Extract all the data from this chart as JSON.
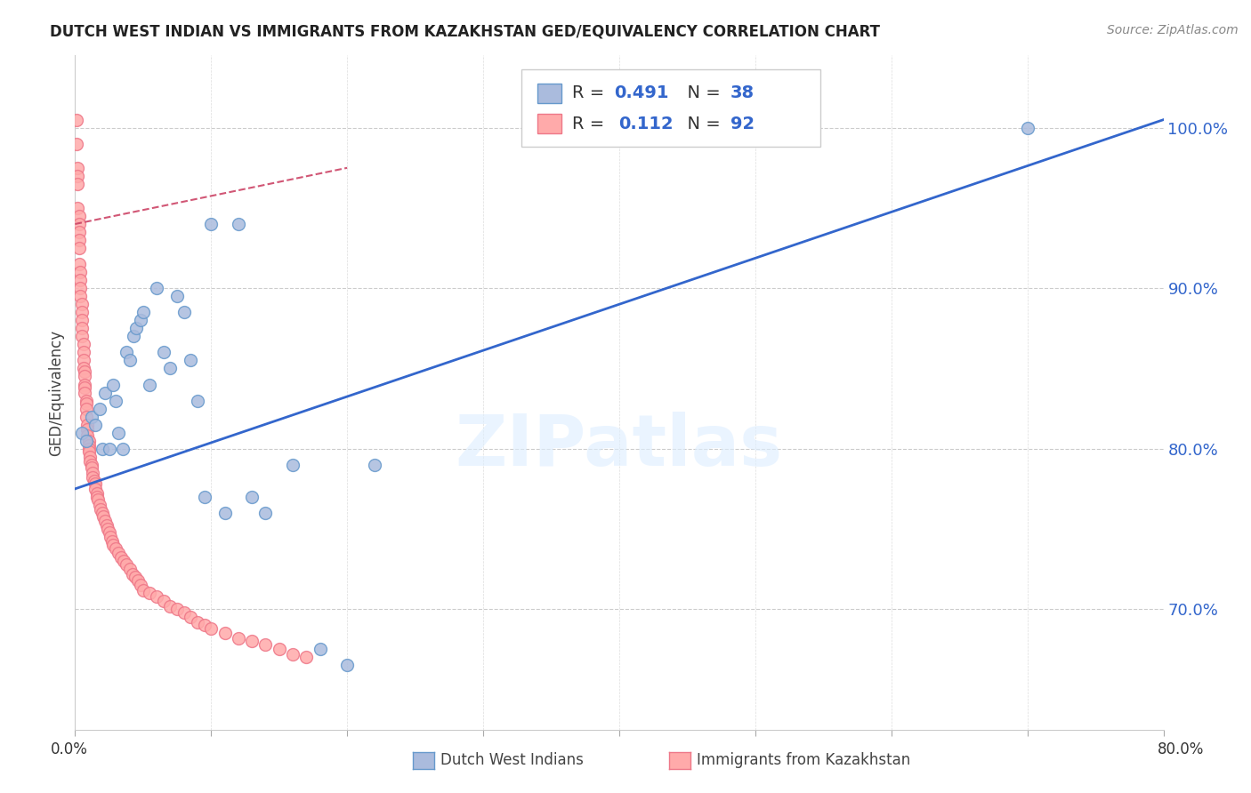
{
  "title": "DUTCH WEST INDIAN VS IMMIGRANTS FROM KAZAKHSTAN GED/EQUIVALENCY CORRELATION CHART",
  "source": "Source: ZipAtlas.com",
  "ylabel": "GED/Equivalency",
  "ytick_labels": [
    "100.0%",
    "90.0%",
    "80.0%",
    "70.0%"
  ],
  "ytick_values": [
    1.0,
    0.9,
    0.8,
    0.7
  ],
  "xlim": [
    0.0,
    0.8
  ],
  "ylim": [
    0.625,
    1.045
  ],
  "legend_blue_r": "0.491",
  "legend_blue_n": "38",
  "legend_pink_r": "0.112",
  "legend_pink_n": "92",
  "watermark": "ZIPatlas",
  "blue_fill": "#AABBDD",
  "blue_edge": "#6699CC",
  "pink_fill": "#FFAAAA",
  "pink_edge": "#EE7788",
  "trend_blue_color": "#3366CC",
  "trend_pink_color": "#CC4466",
  "blue_points_x": [
    0.005,
    0.008,
    0.012,
    0.015,
    0.018,
    0.02,
    0.022,
    0.025,
    0.028,
    0.03,
    0.032,
    0.035,
    0.038,
    0.04,
    0.043,
    0.045,
    0.048,
    0.05,
    0.055,
    0.06,
    0.065,
    0.07,
    0.075,
    0.08,
    0.085,
    0.09,
    0.095,
    0.1,
    0.11,
    0.12,
    0.13,
    0.14,
    0.16,
    0.18,
    0.2,
    0.22,
    0.7
  ],
  "blue_points_y": [
    0.81,
    0.805,
    0.82,
    0.815,
    0.825,
    0.8,
    0.835,
    0.8,
    0.84,
    0.83,
    0.81,
    0.8,
    0.86,
    0.855,
    0.87,
    0.875,
    0.88,
    0.885,
    0.84,
    0.9,
    0.86,
    0.85,
    0.895,
    0.885,
    0.855,
    0.83,
    0.77,
    0.94,
    0.76,
    0.94,
    0.77,
    0.76,
    0.79,
    0.675,
    0.665,
    0.79,
    1.0
  ],
  "pink_points_x": [
    0.001,
    0.001,
    0.002,
    0.002,
    0.002,
    0.002,
    0.003,
    0.003,
    0.003,
    0.003,
    0.003,
    0.003,
    0.004,
    0.004,
    0.004,
    0.004,
    0.005,
    0.005,
    0.005,
    0.005,
    0.005,
    0.006,
    0.006,
    0.006,
    0.006,
    0.007,
    0.007,
    0.007,
    0.007,
    0.007,
    0.008,
    0.008,
    0.008,
    0.008,
    0.009,
    0.009,
    0.009,
    0.01,
    0.01,
    0.01,
    0.01,
    0.011,
    0.011,
    0.012,
    0.012,
    0.013,
    0.013,
    0.014,
    0.015,
    0.015,
    0.016,
    0.016,
    0.017,
    0.018,
    0.019,
    0.02,
    0.021,
    0.022,
    0.023,
    0.024,
    0.025,
    0.026,
    0.027,
    0.028,
    0.03,
    0.032,
    0.034,
    0.036,
    0.038,
    0.04,
    0.042,
    0.044,
    0.046,
    0.048,
    0.05,
    0.055,
    0.06,
    0.065,
    0.07,
    0.075,
    0.08,
    0.085,
    0.09,
    0.095,
    0.1,
    0.11,
    0.12,
    0.13,
    0.14,
    0.15,
    0.16,
    0.17
  ],
  "pink_points_y": [
    1.005,
    0.99,
    0.975,
    0.97,
    0.965,
    0.95,
    0.945,
    0.94,
    0.935,
    0.93,
    0.925,
    0.915,
    0.91,
    0.905,
    0.9,
    0.895,
    0.89,
    0.885,
    0.88,
    0.875,
    0.87,
    0.865,
    0.86,
    0.855,
    0.85,
    0.848,
    0.845,
    0.84,
    0.838,
    0.835,
    0.83,
    0.828,
    0.825,
    0.82,
    0.815,
    0.812,
    0.808,
    0.805,
    0.802,
    0.8,
    0.798,
    0.795,
    0.792,
    0.79,
    0.788,
    0.785,
    0.782,
    0.78,
    0.778,
    0.775,
    0.772,
    0.77,
    0.768,
    0.765,
    0.762,
    0.76,
    0.758,
    0.755,
    0.752,
    0.75,
    0.748,
    0.745,
    0.742,
    0.74,
    0.738,
    0.735,
    0.732,
    0.73,
    0.728,
    0.725,
    0.722,
    0.72,
    0.718,
    0.715,
    0.712,
    0.71,
    0.708,
    0.705,
    0.702,
    0.7,
    0.698,
    0.695,
    0.692,
    0.69,
    0.688,
    0.685,
    0.682,
    0.68,
    0.678,
    0.675,
    0.672,
    0.67
  ],
  "blue_trend_x": [
    0.0,
    0.8
  ],
  "blue_trend_y": [
    0.775,
    1.005
  ],
  "pink_trend_x": [
    0.0,
    0.2
  ],
  "pink_trend_y": [
    0.94,
    0.975
  ]
}
